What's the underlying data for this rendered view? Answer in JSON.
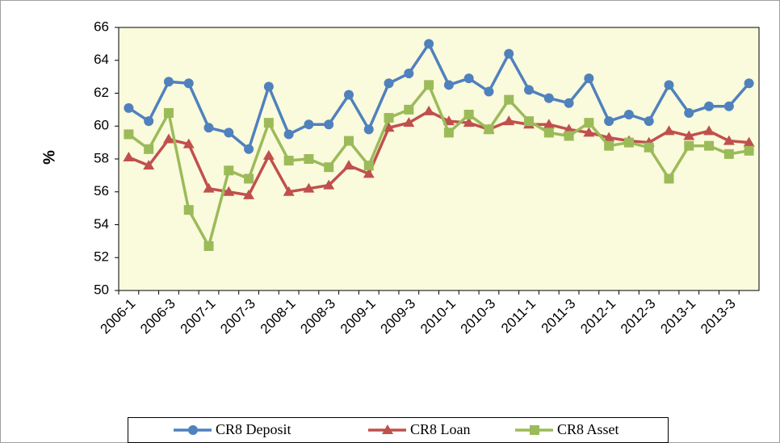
{
  "chart_data": {
    "type": "line",
    "y_label": "%",
    "categories": [
      "2006-1",
      null,
      "2006-3",
      null,
      "2007-1",
      null,
      "2007-3",
      null,
      "2008-1",
      null,
      "2008-3",
      null,
      "2009-1",
      null,
      "2009-3",
      null,
      "2010-1",
      null,
      "2010-3",
      null,
      "2011-1",
      null,
      "2011-3",
      null,
      "2012-1",
      null,
      "2012-3",
      null,
      "2013-1",
      null,
      "2013-3",
      null
    ],
    "series": [
      {
        "name": "CR8 Deposit",
        "color": "#4f81bd",
        "marker": "circle",
        "values": [
          61.1,
          60.3,
          62.7,
          62.6,
          59.9,
          59.6,
          58.6,
          62.4,
          59.5,
          60.1,
          60.1,
          61.9,
          59.8,
          62.6,
          63.2,
          65.0,
          62.5,
          62.9,
          62.1,
          64.4,
          62.2,
          61.7,
          61.4,
          62.9,
          60.3,
          60.7,
          60.3,
          62.5,
          60.8,
          61.2,
          61.2,
          62.6
        ]
      },
      {
        "name": "CR8 Loan",
        "color": "#c0504d",
        "marker": "triangle",
        "values": [
          58.1,
          57.6,
          59.2,
          58.9,
          56.2,
          56.0,
          55.8,
          58.2,
          56.0,
          56.2,
          56.4,
          57.6,
          57.1,
          59.9,
          60.2,
          60.9,
          60.3,
          60.2,
          59.8,
          60.3,
          60.1,
          60.1,
          59.8,
          59.6,
          59.3,
          59.1,
          59.0,
          59.7,
          59.4,
          59.7,
          59.1,
          59.0
        ]
      },
      {
        "name": "CR8 Asset",
        "color": "#9bbb59",
        "marker": "square",
        "values": [
          59.5,
          58.6,
          60.8,
          54.9,
          52.7,
          57.3,
          56.8,
          60.2,
          57.9,
          58.0,
          57.5,
          59.1,
          57.6,
          60.5,
          61.0,
          62.5,
          59.6,
          60.7,
          59.8,
          61.6,
          60.3,
          59.6,
          59.4,
          60.2,
          58.8,
          59.0,
          58.7,
          56.8,
          58.8,
          58.8,
          58.3,
          58.5
        ]
      }
    ],
    "ylim": [
      50,
      66
    ],
    "yticks": [
      50,
      52,
      54,
      56,
      58,
      60,
      62,
      64,
      66
    ],
    "grid": false,
    "legend": "bottom",
    "plot_background": "#fafadc"
  }
}
